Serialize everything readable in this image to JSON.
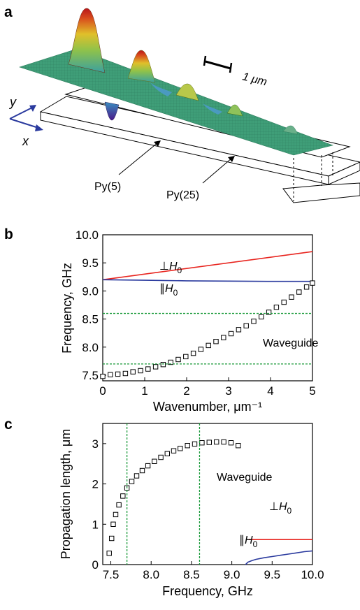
{
  "panels": {
    "a": {
      "letter": "a",
      "scale_label": "1 μm",
      "axis_y": "y",
      "axis_x": "x",
      "label_py5": "Py(5)",
      "label_py25": "Py(25)"
    },
    "b": {
      "letter": "b"
    },
    "c": {
      "letter": "c"
    }
  },
  "colors": {
    "perp": "#e8251f",
    "para": "#2a3a9e",
    "guide": "#1a9a3a",
    "marker": "#000000",
    "surface": "#3f9e78"
  },
  "chart_data": [
    {
      "panel": "b",
      "type": "scatter",
      "xlabel": "Wavenumber, μm⁻¹",
      "ylabel": "Frequency, GHz",
      "xlim": [
        0,
        5
      ],
      "ylim": [
        7.4,
        10.0
      ],
      "xticks": [
        "0",
        "1",
        "2",
        "3",
        "4",
        "5"
      ],
      "yticks": [
        "7.5",
        "8.0",
        "8.5",
        "9.0",
        "9.5",
        "10.0"
      ],
      "grid": false,
      "series": [
        {
          "name": "⊥H0",
          "label_main": "⊥H",
          "label_sub": "0",
          "kind": "line",
          "color": "#e8251f",
          "x": [
            0,
            5
          ],
          "y": [
            9.2,
            9.7
          ]
        },
        {
          "name": "∥H0",
          "label_main": "∥H",
          "label_sub": "0",
          "kind": "line",
          "color": "#2a3a9e",
          "x": [
            0,
            1,
            2,
            3,
            4,
            5
          ],
          "y": [
            9.2,
            9.19,
            9.18,
            9.175,
            9.17,
            9.17
          ]
        },
        {
          "name": "Waveguide",
          "label_main": "Waveguide",
          "kind": "markers",
          "x": [
            0.0,
            0.18,
            0.36,
            0.54,
            0.72,
            0.9,
            1.08,
            1.26,
            1.44,
            1.62,
            1.8,
            1.98,
            2.16,
            2.34,
            2.52,
            2.7,
            2.88,
            3.06,
            3.24,
            3.42,
            3.6,
            3.78,
            3.96,
            4.14,
            4.32,
            4.5,
            4.68,
            4.86,
            5.0
          ],
          "y": [
            7.48,
            7.51,
            7.52,
            7.53,
            7.56,
            7.58,
            7.61,
            7.65,
            7.69,
            7.73,
            7.78,
            7.83,
            7.89,
            7.96,
            8.03,
            8.1,
            8.17,
            8.24,
            8.31,
            8.38,
            8.46,
            8.54,
            8.62,
            8.71,
            8.8,
            8.89,
            8.98,
            9.07,
            9.14
          ]
        },
        {
          "name": "",
          "kind": "hline",
          "color": "#1a9a3a",
          "y": [
            8.6
          ]
        },
        {
          "name": "",
          "kind": "hline",
          "color": "#1a9a3a",
          "y": [
            7.7
          ]
        }
      ]
    },
    {
      "panel": "c",
      "type": "scatter",
      "xlabel": "Frequency, GHz",
      "ylabel": "Propagation length, μm",
      "xlim": [
        7.4,
        10.0
      ],
      "ylim": [
        0,
        3.5
      ],
      "xticks": [
        "7.5",
        "8.0",
        "8.5",
        "9.0",
        "9.5",
        "10.0"
      ],
      "yticks": [
        "0",
        "1",
        "2",
        "3"
      ],
      "grid": false,
      "series": [
        {
          "name": "Waveguide",
          "label_main": "Waveguide",
          "kind": "markers",
          "x": [
            7.48,
            7.51,
            7.53,
            7.56,
            7.6,
            7.65,
            7.7,
            7.76,
            7.82,
            7.89,
            7.96,
            8.04,
            8.12,
            8.2,
            8.28,
            8.36,
            8.45,
            8.54,
            8.63,
            8.72,
            8.81,
            8.9,
            8.99,
            9.08
          ],
          "y": [
            0.28,
            0.65,
            1.0,
            1.24,
            1.48,
            1.7,
            1.9,
            2.06,
            2.2,
            2.33,
            2.45,
            2.56,
            2.66,
            2.75,
            2.82,
            2.88,
            2.95,
            2.99,
            3.02,
            3.03,
            3.04,
            3.04,
            3.02,
            2.95
          ]
        },
        {
          "name": "⊥H0",
          "label_main": "⊥H",
          "label_sub": "0",
          "kind": "line",
          "color": "#e8251f",
          "x": [
            9.21,
            10.0
          ],
          "y": [
            0.62,
            0.62
          ]
        },
        {
          "name": "∥H0",
          "label_main": "∥H",
          "label_sub": "0",
          "kind": "line",
          "color": "#2a3a9e",
          "x": [
            9.17,
            9.2,
            9.25,
            9.3,
            9.4,
            9.5,
            9.6,
            9.7,
            9.8,
            9.9,
            10.0
          ],
          "y": [
            0.0,
            0.06,
            0.1,
            0.13,
            0.17,
            0.2,
            0.23,
            0.26,
            0.29,
            0.32,
            0.34
          ]
        },
        {
          "name": "",
          "kind": "vline",
          "color": "#1a9a3a",
          "x": [
            7.7
          ]
        },
        {
          "name": "",
          "kind": "vline",
          "color": "#1a9a3a",
          "x": [
            8.6
          ]
        }
      ]
    }
  ]
}
